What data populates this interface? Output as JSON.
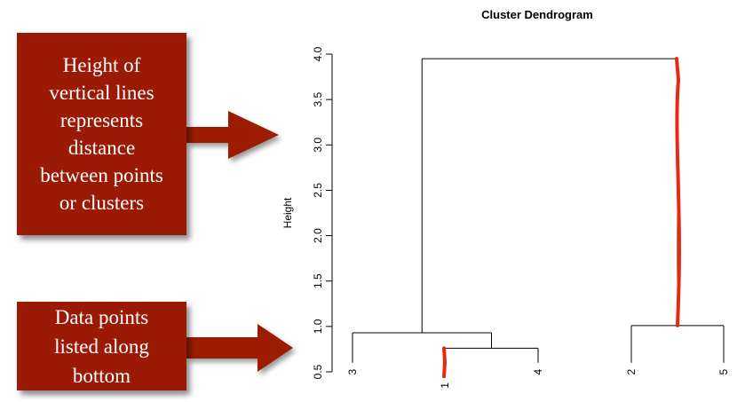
{
  "callouts": {
    "top": [
      "Height of",
      "vertical lines",
      "represents",
      "distance",
      "between points",
      "or clusters"
    ],
    "bottom": [
      "Data points",
      "listed along",
      "bottom"
    ]
  },
  "colors": {
    "callout_fill": "#9b1a06",
    "arrow_fill": "#9b1a06",
    "highlight_stroke": "#e8280f",
    "tree_stroke": "#000000"
  },
  "chart_data": {
    "type": "dendrogram",
    "title": "Cluster Dendrogram",
    "ylabel": "Height",
    "xlabel": "",
    "ylim": [
      0.5,
      4.0
    ],
    "y_ticks": [
      "0.5",
      "1.0",
      "1.5",
      "2.0",
      "2.5",
      "3.0",
      "3.5",
      "4.0"
    ],
    "leaf_order": [
      "3",
      "1",
      "4",
      "2",
      "5"
    ],
    "leaf_heights": [
      0.6,
      0.45,
      0.6,
      0.6,
      0.6
    ],
    "merges": [
      {
        "left": "1",
        "right": "4",
        "height": 0.76
      },
      {
        "left": "3",
        "right": "(1,4)",
        "height": 0.93
      },
      {
        "left": "2",
        "right": "5",
        "height": 1.01
      },
      {
        "left": "(3,(1,4))",
        "right": "(2,5)",
        "height": 3.95
      }
    ],
    "highlights": [
      {
        "description": "leaf 1 vertical segment",
        "from": 0.45,
        "to": 0.76
      },
      {
        "description": "upper vertical segment of cluster (2,5)",
        "from": 1.01,
        "to": 3.95
      }
    ]
  }
}
